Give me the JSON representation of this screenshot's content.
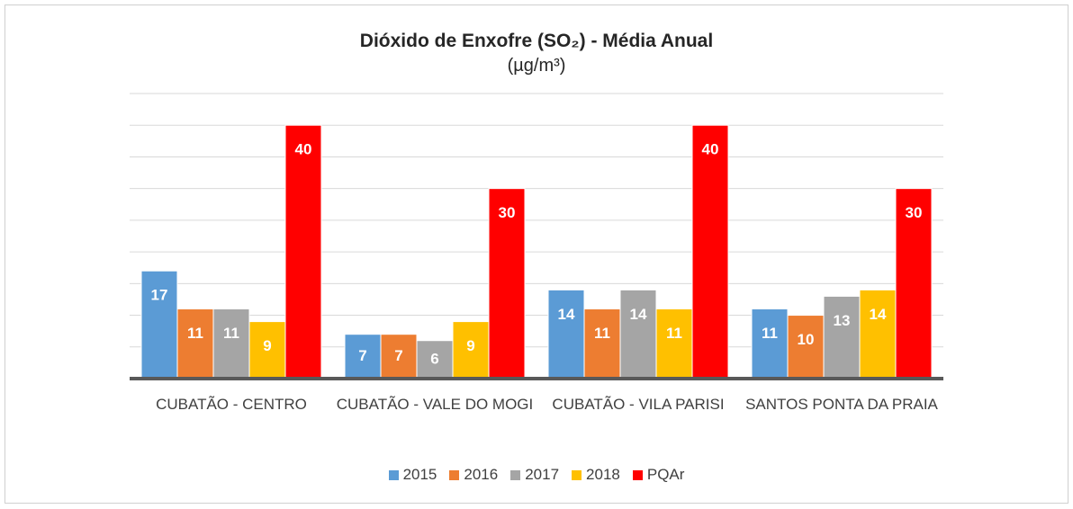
{
  "chart_data": {
    "type": "bar",
    "title": "Dióxido de Enxofre (SO₂) - Média Anual",
    "subtitle": "(µg/m³)",
    "categories": [
      "CUBATÃO - CENTRO",
      "CUBATÃO - VALE DO MOGI",
      "CUBATÃO - VILA PARISI",
      "SANTOS PONTA DA PRAIA"
    ],
    "series": [
      {
        "name": "2015",
        "color": "#5b9bd5",
        "values": [
          17,
          7,
          14,
          11
        ]
      },
      {
        "name": "2016",
        "color": "#ed7d31",
        "values": [
          11,
          7,
          11,
          10
        ]
      },
      {
        "name": "2017",
        "color": "#a5a5a5",
        "values": [
          11,
          6,
          14,
          13
        ]
      },
      {
        "name": "2018",
        "color": "#ffc000",
        "values": [
          9,
          9,
          11,
          14
        ]
      },
      {
        "name": "PQAr",
        "color": "#ff0000",
        "values": [
          40,
          30,
          40,
          30
        ]
      }
    ],
    "ylim": [
      0,
      45
    ],
    "yticks": [
      0,
      5,
      10,
      15,
      20,
      25,
      30,
      35,
      40,
      45
    ],
    "grid": true,
    "legend": "bottom"
  }
}
